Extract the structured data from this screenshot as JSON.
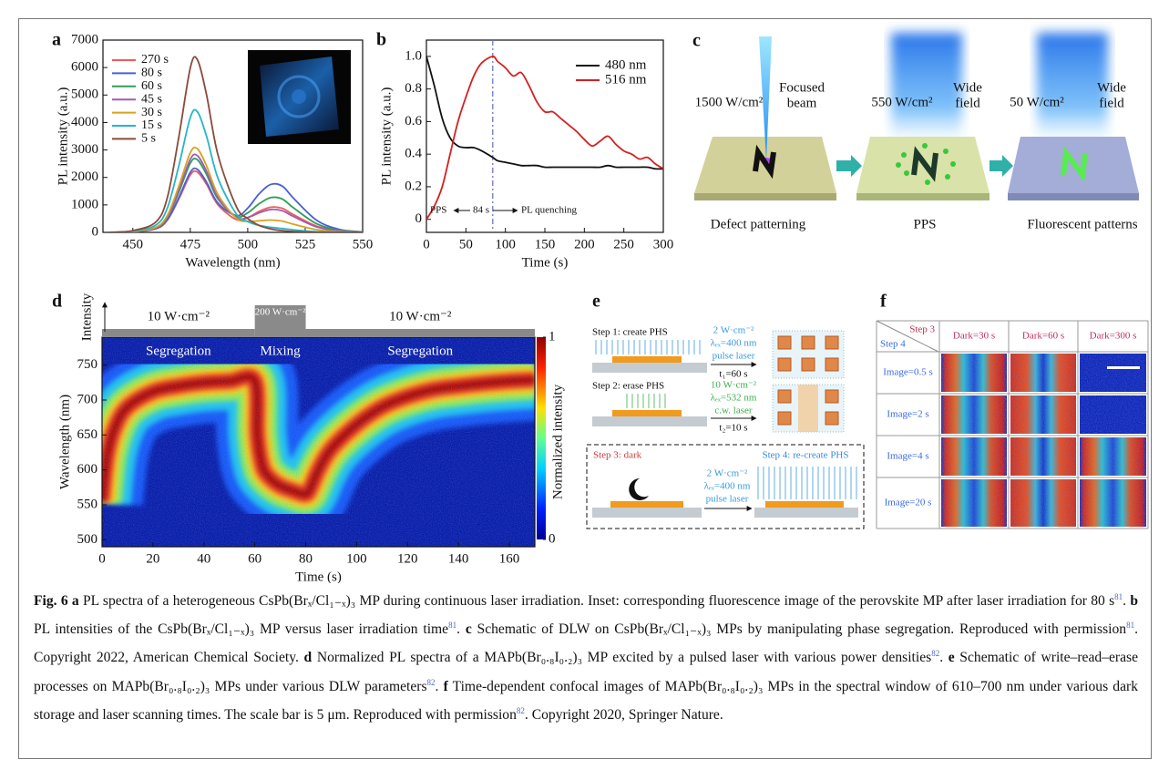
{
  "chart_data": [
    {
      "type": "line",
      "panel": "a",
      "xlabel": "Wavelength (nm)",
      "ylabel": "PL intensity (a.u.)",
      "x": [
        440,
        450,
        460,
        465,
        470,
        475,
        478,
        482,
        487,
        495,
        500,
        505,
        510,
        515,
        520,
        530,
        540,
        550
      ],
      "xlim": [
        437,
        550
      ],
      "xticks": [
        450,
        475,
        500,
        525,
        550
      ],
      "ylim": [
        0,
        7000
      ],
      "yticks": [
        0,
        1000,
        2000,
        3000,
        4000,
        5000,
        6000,
        7000
      ],
      "legend": "upper left",
      "series": [
        {
          "name": "270 s",
          "color": "#ef5a5a",
          "values": [
            0,
            22,
            132,
            440,
            1210,
            2090,
            2200,
            1760,
            1008,
            465,
            536,
            763,
            917,
            877,
            641,
            225,
            54,
            9
          ]
        },
        {
          "name": "80 s",
          "color": "#4a5fd8",
          "values": [
            0,
            23,
            138,
            460,
            1265,
            2185,
            2300,
            1840,
            1070,
            608,
            884,
            1405,
            1744,
            1686,
            1237,
            438,
            105,
            18
          ]
        },
        {
          "name": "60 s",
          "color": "#2f9e58",
          "values": [
            0,
            27,
            159,
            530,
            1458,
            2518,
            2650,
            2120,
            1218,
            586,
            712,
            1044,
            1266,
            1215,
            888,
            313,
            75,
            13
          ]
        },
        {
          "name": "45 s",
          "color": "#a05ab6",
          "values": [
            0,
            28,
            168,
            560,
            1540,
            2660,
            2800,
            2240,
            1276,
            540,
            544,
            712,
            832,
            788,
            574,
            200,
            48,
            8
          ]
        },
        {
          "name": "30 s",
          "color": "#d8a21e",
          "values": [
            0,
            31,
            183,
            610,
            1678,
            2898,
            3050,
            2440,
            1381,
            518,
            404,
            422,
            449,
            411,
            295,
            100,
            24,
            4
          ]
        },
        {
          "name": "15 s",
          "color": "#25b5c8",
          "values": [
            0,
            44,
            264,
            880,
            2420,
            4180,
            4400,
            3520,
            1982,
            675,
            392,
            251,
            185,
            139,
            92,
            25,
            6,
            1
          ]
        },
        {
          "name": "5 s",
          "color": "#8a4a3a",
          "values": [
            0,
            63,
            378,
            1260,
            3465,
            5985,
            6300,
            5040,
            2835,
            945,
            504,
            252,
            126,
            63,
            32,
            0,
            0,
            0
          ]
        }
      ]
    },
    {
      "type": "line",
      "panel": "b",
      "xlabel": "Time (s)",
      "ylabel": "PL intensity (a.u.)",
      "x": [
        0,
        10,
        20,
        30,
        40,
        50,
        60,
        70,
        84,
        90,
        100,
        110,
        120,
        130,
        140,
        150,
        160,
        170,
        180,
        190,
        200,
        210,
        220,
        230,
        240,
        250,
        260,
        270,
        280,
        290,
        300
      ],
      "xlim": [
        0,
        300
      ],
      "xticks": [
        0,
        50,
        100,
        150,
        200,
        250,
        300
      ],
      "ylim": [
        -0.08,
        1.1
      ],
      "yticks": [
        0,
        0.2,
        0.4,
        0.6,
        0.8,
        {
          "value": 1,
          "label": "1.0"
        }
      ],
      "legend": "upper right",
      "vline": 84,
      "annotations": [
        "PPS",
        "84 s",
        "PL quenching"
      ],
      "series": [
        {
          "name": "480 nm",
          "color": "#111111",
          "values": [
            1.0,
            0.82,
            0.62,
            0.5,
            0.45,
            0.44,
            0.44,
            0.42,
            0.38,
            0.36,
            0.35,
            0.34,
            0.33,
            0.33,
            0.33,
            0.32,
            0.32,
            0.32,
            0.32,
            0.32,
            0.32,
            0.32,
            0.32,
            0.33,
            0.32,
            0.32,
            0.32,
            0.32,
            0.32,
            0.31,
            0.31
          ]
        },
        {
          "name": "516 nm",
          "color": "#d42020",
          "values": [
            0,
            0.08,
            0.2,
            0.4,
            0.6,
            0.75,
            0.88,
            0.96,
            1.0,
            0.97,
            0.93,
            0.88,
            0.9,
            0.82,
            0.72,
            0.66,
            0.66,
            0.62,
            0.58,
            0.54,
            0.49,
            0.45,
            0.48,
            0.51,
            0.46,
            0.42,
            0.4,
            0.37,
            0.38,
            0.34,
            0.31
          ]
        }
      ]
    },
    {
      "type": "heatmap",
      "panel": "d",
      "xlabel": "Time (s)",
      "ylabel": "Wavelength (nm)",
      "top_label": "Intensity",
      "xlim": [
        0,
        170
      ],
      "xticks": [
        0,
        20,
        40,
        60,
        80,
        100,
        120,
        140,
        160
      ],
      "ylim": [
        490,
        790
      ],
      "yticks": [
        500,
        550,
        600,
        650,
        700,
        750
      ],
      "colorbar": {
        "label": "Normalized intensity",
        "zlim": [
          0,
          1
        ],
        "ticks": [
          0,
          1
        ]
      },
      "phases": [
        {
          "power": "10 W·cm⁻²",
          "region": "Segregation",
          "range": [
            0,
            60
          ]
        },
        {
          "power": "200 W·cm⁻²",
          "region": "Mixing",
          "range": [
            60,
            80
          ]
        },
        {
          "power": "10 W·cm⁻²",
          "region": "Segregation",
          "range": [
            80,
            170
          ]
        }
      ],
      "x": [
        0,
        2,
        5,
        10,
        20,
        30,
        40,
        50,
        60,
        61,
        63,
        66,
        70,
        75,
        80,
        82,
        85,
        90,
        100,
        110,
        120,
        130,
        140,
        150,
        160,
        170
      ],
      "values": [
        555,
        620,
        660,
        690,
        712,
        720,
        725,
        727,
        728,
        650,
        605,
        588,
        577,
        570,
        565,
        575,
        600,
        630,
        665,
        690,
        705,
        715,
        720,
        724,
        727,
        729
      ]
    }
  ],
  "figure": {
    "panel_c": {
      "panel": "c",
      "stages": [
        {
          "power": "1500 W/cm²",
          "beam": [
            "Focused",
            "beam"
          ],
          "label": "Defect patterning"
        },
        {
          "power": "550 W/cm²",
          "beam": [
            "Wide",
            "field"
          ],
          "label": "PPS"
        },
        {
          "power": "50 W/cm²",
          "beam": [
            "Wide",
            "field"
          ],
          "label": "Fluorescent patterns"
        }
      ]
    },
    "panel_e": {
      "panel": "e",
      "step1": {
        "title": "Step 1: create PHS",
        "params": [
          "2 W·cm⁻²",
          "λₑₓ=400 nm",
          "pulse laser"
        ],
        "time": "t₁=60 s"
      },
      "step2": {
        "title": "Step 2: erase PHS",
        "params": [
          "10 W·cm⁻²",
          "λₑₓ=532 nm",
          "c.w. laser"
        ],
        "time": "t₂=10 s"
      },
      "step3": "Step 3: dark",
      "step4": "Step 4: re-create PHS",
      "params34": [
        "2 W·cm⁻²",
        "λₑₓ=400 nm",
        "pulse laser"
      ]
    },
    "panel_f": {
      "panel": "f",
      "corner": [
        "Step 3",
        "Step 4"
      ],
      "columns": [
        "Dark=30 s",
        "Dark=60 s",
        "Dark=300 s"
      ],
      "rows": [
        "Image=0.5 s",
        "Image=2 s",
        "Image=4 s",
        "Image=20 s"
      ]
    },
    "caption": {
      "label": "Fig. 6",
      "parts": [
        {
          "letter": "a",
          "text": "PL spectra of a heterogeneous CsPb(Brₓ/Cl₁₋ₓ)₃ MP during continuous laser irradiation. Inset: corresponding fluorescence image of the perovskite MP after laser irradiation for 80 s",
          "ref": "81",
          "tail": "."
        },
        {
          "letter": "b",
          "text": "PL intensities of the CsPb(Brₓ/Cl₁₋ₓ)₃ MP versus laser irradiation time",
          "ref": "81",
          "tail": "."
        },
        {
          "letter": "c",
          "text": "Schematic of DLW on CsPb(Brₓ/Cl₁₋ₓ)₃ MPs by manipulating phase segregation. Reproduced with permission",
          "ref": "81",
          "tail": ". Copyright 2022, American Chemical Society."
        },
        {
          "letter": "d",
          "text": "Normalized PL spectra of a MAPb(Br₀.₈I₀.₂)₃ MP excited by a pulsed laser with various power densities",
          "ref": "82",
          "tail": "."
        },
        {
          "letter": "e",
          "text": "Schematic of write–read–erase processes on MAPb(Br₀.₈I₀.₂)₃ MPs under various DLW parameters",
          "ref": "82",
          "tail": "."
        },
        {
          "letter": "f",
          "text": "Time-dependent confocal images of MAPb(Br₀.₈I₀.₂)₃ MPs in the spectral window of 610–700 nm under various dark storage and laser scanning times. The scale bar is 5 μm. Reproduced with permission",
          "ref": "82",
          "tail": ". Copyright 2020, Springer Nature."
        }
      ]
    }
  }
}
